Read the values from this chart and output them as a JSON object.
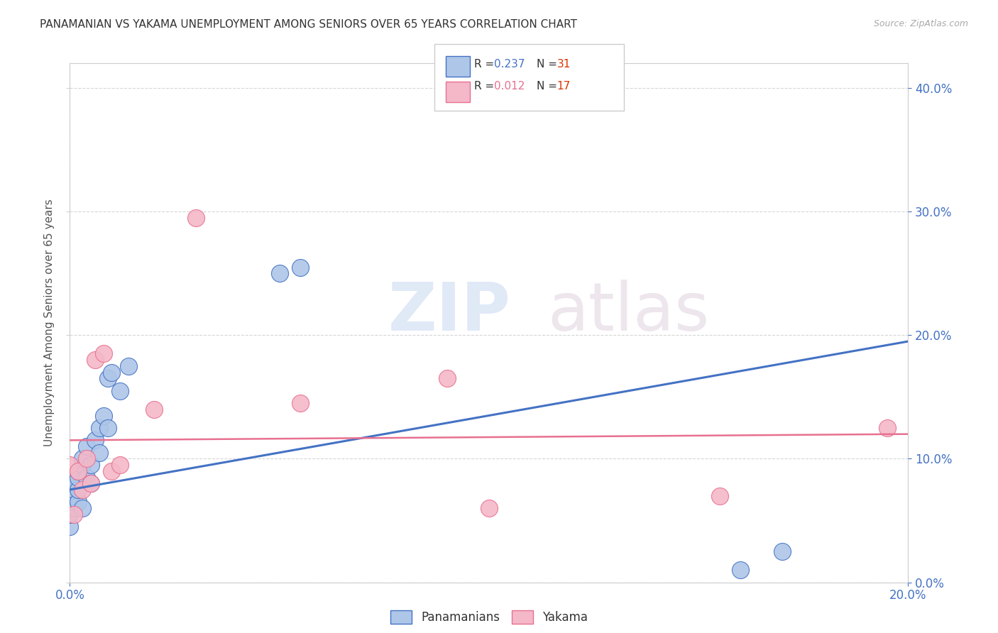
{
  "title": "PANAMANIAN VS YAKAMA UNEMPLOYMENT AMONG SENIORS OVER 65 YEARS CORRELATION CHART",
  "source": "Source: ZipAtlas.com",
  "xlim": [
    0.0,
    0.2
  ],
  "ylim": [
    0.0,
    0.42
  ],
  "xlabel_tick_vals": [
    0.0,
    0.2
  ],
  "ylabel_tick_vals": [
    0.0,
    0.1,
    0.2,
    0.3,
    0.4
  ],
  "ylabel": "Unemployment Among Seniors over 65 years",
  "legend_labels": [
    "Panamanians",
    "Yakama"
  ],
  "panamanian_r": 0.237,
  "panamanian_n": 31,
  "yakama_r": 0.012,
  "yakama_n": 17,
  "panamanian_color": "#aec6e8",
  "yakama_color": "#f4b8c8",
  "panamanian_edge_color": "#4472c4",
  "yakama_edge_color": "#e87090",
  "panamanian_line_color": "#4472c4",
  "yakama_line_color": "#e87090",
  "watermark_zip": "ZIP",
  "watermark_atlas": "atlas",
  "pan_x": [
    0.0,
    0.0,
    0.001,
    0.001,
    0.001,
    0.001,
    0.001,
    0.002,
    0.002,
    0.002,
    0.002,
    0.003,
    0.003,
    0.003,
    0.004,
    0.004,
    0.005,
    0.005,
    0.006,
    0.007,
    0.007,
    0.008,
    0.009,
    0.009,
    0.01,
    0.012,
    0.014,
    0.05,
    0.055,
    0.16,
    0.17
  ],
  "pan_y": [
    0.045,
    0.055,
    0.06,
    0.065,
    0.07,
    0.075,
    0.08,
    0.065,
    0.075,
    0.085,
    0.09,
    0.095,
    0.1,
    0.06,
    0.085,
    0.11,
    0.08,
    0.095,
    0.115,
    0.105,
    0.125,
    0.135,
    0.125,
    0.165,
    0.17,
    0.155,
    0.175,
    0.25,
    0.255,
    0.01,
    0.025
  ],
  "yak_x": [
    0.0,
    0.001,
    0.002,
    0.003,
    0.004,
    0.005,
    0.006,
    0.008,
    0.01,
    0.012,
    0.02,
    0.03,
    0.055,
    0.09,
    0.1,
    0.155,
    0.195
  ],
  "yak_y": [
    0.095,
    0.055,
    0.09,
    0.075,
    0.1,
    0.08,
    0.18,
    0.185,
    0.09,
    0.095,
    0.14,
    0.295,
    0.145,
    0.165,
    0.06,
    0.07,
    0.125
  ],
  "pan_line_x0": 0.0,
  "pan_line_y0": 0.075,
  "pan_line_x1": 0.2,
  "pan_line_y1": 0.195,
  "yak_line_x0": 0.0,
  "yak_line_y0": 0.115,
  "yak_line_x1": 0.2,
  "yak_line_y1": 0.12
}
